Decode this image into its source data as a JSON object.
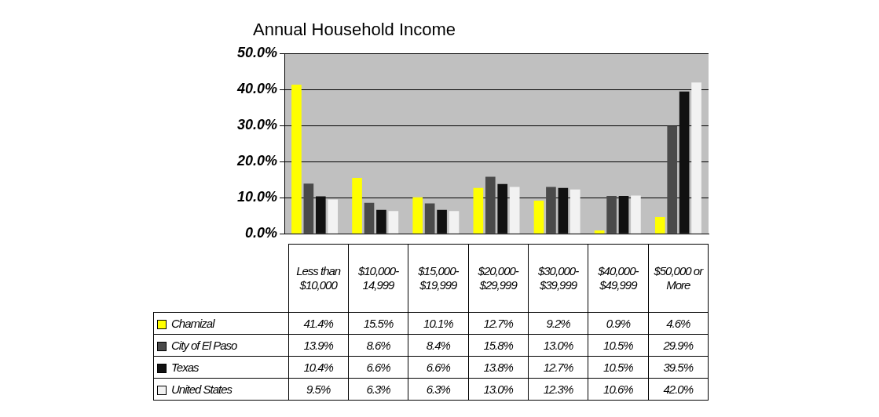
{
  "chart_data": {
    "type": "bar",
    "title": "Annual Household Income",
    "categories": [
      "Less than $10,000",
      "$10,000-14,999",
      "$15,000-$19,999",
      "$20,000-$29,999",
      "$30,000-$39,999",
      "$40,000-$49,999",
      "$50,000 or More"
    ],
    "series": [
      {
        "name": "Chamizal",
        "color": "#ffff00",
        "values": [
          41.4,
          15.5,
          10.1,
          12.7,
          9.2,
          0.9,
          4.6
        ],
        "value_labels": [
          "41.4%",
          "15.5%",
          "10.1%",
          "12.7%",
          "9.2%",
          "0.9%",
          "4.6%"
        ]
      },
      {
        "name": "City of El Paso",
        "color": "#4a4a4a",
        "values": [
          13.9,
          8.6,
          8.4,
          15.8,
          13.0,
          10.5,
          29.9
        ],
        "value_labels": [
          "13.9%",
          "8.6%",
          "8.4%",
          "15.8%",
          "13.0%",
          "10.5%",
          "29.9%"
        ]
      },
      {
        "name": "Texas",
        "color": "#111111",
        "values": [
          10.4,
          6.6,
          6.6,
          13.8,
          12.7,
          10.5,
          39.5
        ],
        "value_labels": [
          "10.4%",
          "6.6%",
          "6.6%",
          "13.8%",
          "12.7%",
          "10.5%",
          "39.5%"
        ]
      },
      {
        "name": "United States",
        "color": "#f2f2f2",
        "values": [
          9.5,
          6.3,
          6.3,
          13.0,
          12.3,
          10.6,
          42.0
        ],
        "value_labels": [
          "9.5%",
          "6.3%",
          "6.3%",
          "13.0%",
          "12.3%",
          "10.6%",
          "42.0%"
        ]
      }
    ],
    "ylim": [
      0,
      50
    ],
    "yticks": [
      {
        "value": 0,
        "label": "0.0%"
      },
      {
        "value": 10,
        "label": "10.0%"
      },
      {
        "value": 20,
        "label": "20.0%"
      },
      {
        "value": 30,
        "label": "30.0%"
      },
      {
        "value": 40,
        "label": "40.0%"
      },
      {
        "value": 50,
        "label": "50.0%"
      }
    ],
    "grid": "y",
    "legend": "bottom left"
  }
}
